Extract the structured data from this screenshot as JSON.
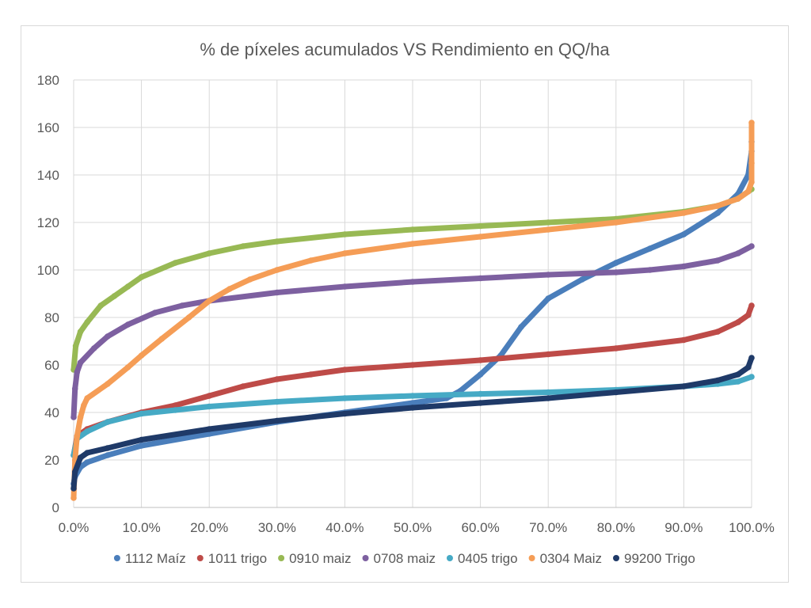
{
  "chart_data": {
    "type": "scatter",
    "title": "% de píxeles acumulados VS Rendimiento en QQ/ha",
    "xlabel": "",
    "ylabel": "",
    "xlim": [
      0,
      1
    ],
    "ylim": [
      0,
      180
    ],
    "x_ticks": [
      "0.0%",
      "10.0%",
      "20.0%",
      "30.0%",
      "40.0%",
      "50.0%",
      "60.0%",
      "70.0%",
      "80.0%",
      "90.0%",
      "100.0%"
    ],
    "y_ticks": [
      "0",
      "20",
      "40",
      "60",
      "80",
      "100",
      "120",
      "140",
      "160",
      "180"
    ],
    "grid": true,
    "legend_position": "bottom",
    "series": [
      {
        "name": "1112 Maíz",
        "color": "#4a7ebb",
        "points": [
          [
            0,
            10
          ],
          [
            0.002,
            13
          ],
          [
            0.01,
            17
          ],
          [
            0.02,
            19
          ],
          [
            0.05,
            22
          ],
          [
            0.1,
            26
          ],
          [
            0.2,
            31
          ],
          [
            0.3,
            36
          ],
          [
            0.4,
            40
          ],
          [
            0.5,
            44
          ],
          [
            0.55,
            46
          ],
          [
            0.57,
            49
          ],
          [
            0.6,
            56
          ],
          [
            0.63,
            64
          ],
          [
            0.66,
            76
          ],
          [
            0.7,
            88
          ],
          [
            0.75,
            96
          ],
          [
            0.8,
            103
          ],
          [
            0.85,
            109
          ],
          [
            0.9,
            115
          ],
          [
            0.95,
            124
          ],
          [
            0.98,
            132
          ],
          [
            0.995,
            140
          ],
          [
            1.0,
            150
          ],
          [
            1.0,
            154
          ]
        ]
      },
      {
        "name": "1011 trigo",
        "color": "#be4b48",
        "points": [
          [
            0,
            22
          ],
          [
            0.005,
            30
          ],
          [
            0.02,
            33
          ],
          [
            0.05,
            36
          ],
          [
            0.1,
            40
          ],
          [
            0.15,
            43
          ],
          [
            0.2,
            47
          ],
          [
            0.25,
            51
          ],
          [
            0.3,
            54
          ],
          [
            0.35,
            56
          ],
          [
            0.4,
            58
          ],
          [
            0.5,
            60
          ],
          [
            0.6,
            62
          ],
          [
            0.7,
            64.5
          ],
          [
            0.8,
            67
          ],
          [
            0.9,
            70.5
          ],
          [
            0.95,
            74
          ],
          [
            0.98,
            78
          ],
          [
            0.995,
            81
          ],
          [
            1.0,
            85
          ]
        ]
      },
      {
        "name": "0910 maiz",
        "color": "#98b954",
        "points": [
          [
            0,
            58
          ],
          [
            0.003,
            68
          ],
          [
            0.01,
            74
          ],
          [
            0.02,
            78
          ],
          [
            0.04,
            85
          ],
          [
            0.06,
            89
          ],
          [
            0.08,
            93
          ],
          [
            0.1,
            97
          ],
          [
            0.15,
            103
          ],
          [
            0.2,
            107
          ],
          [
            0.25,
            110
          ],
          [
            0.3,
            112
          ],
          [
            0.4,
            115
          ],
          [
            0.5,
            117
          ],
          [
            0.6,
            118.5
          ],
          [
            0.7,
            120
          ],
          [
            0.8,
            121.5
          ],
          [
            0.9,
            124.5
          ],
          [
            0.95,
            127
          ],
          [
            0.98,
            130
          ],
          [
            1.0,
            134
          ]
        ]
      },
      {
        "name": "0708 maiz",
        "color": "#7d60a0",
        "points": [
          [
            0,
            38
          ],
          [
            0.002,
            50
          ],
          [
            0.005,
            57
          ],
          [
            0.01,
            61
          ],
          [
            0.03,
            67
          ],
          [
            0.05,
            72
          ],
          [
            0.08,
            77
          ],
          [
            0.12,
            82
          ],
          [
            0.16,
            85
          ],
          [
            0.2,
            87
          ],
          [
            0.3,
            90.5
          ],
          [
            0.4,
            93
          ],
          [
            0.5,
            95
          ],
          [
            0.6,
            96.5
          ],
          [
            0.7,
            98
          ],
          [
            0.8,
            99
          ],
          [
            0.85,
            100
          ],
          [
            0.9,
            101.5
          ],
          [
            0.95,
            104
          ],
          [
            0.98,
            107
          ],
          [
            1.0,
            110
          ]
        ]
      },
      {
        "name": "0405 trigo",
        "color": "#46aac5",
        "points": [
          [
            0,
            22
          ],
          [
            0.005,
            29
          ],
          [
            0.02,
            32
          ],
          [
            0.05,
            36
          ],
          [
            0.1,
            39.5
          ],
          [
            0.15,
            41
          ],
          [
            0.2,
            42.5
          ],
          [
            0.3,
            44.5
          ],
          [
            0.4,
            46
          ],
          [
            0.5,
            47
          ],
          [
            0.6,
            47.8
          ],
          [
            0.7,
            48.5
          ],
          [
            0.8,
            49.5
          ],
          [
            0.9,
            51
          ],
          [
            0.95,
            52
          ],
          [
            0.98,
            53
          ],
          [
            1.0,
            55
          ]
        ]
      },
      {
        "name": "0304 Maiz",
        "color": "#f59d56",
        "points": [
          [
            0,
            4
          ],
          [
            0.002,
            20
          ],
          [
            0.005,
            30
          ],
          [
            0.01,
            38
          ],
          [
            0.015,
            43
          ],
          [
            0.02,
            46
          ],
          [
            0.05,
            52
          ],
          [
            0.08,
            59
          ],
          [
            0.1,
            64
          ],
          [
            0.13,
            71
          ],
          [
            0.17,
            80
          ],
          [
            0.2,
            87
          ],
          [
            0.23,
            92
          ],
          [
            0.26,
            96
          ],
          [
            0.3,
            100
          ],
          [
            0.35,
            104
          ],
          [
            0.4,
            107
          ],
          [
            0.5,
            111
          ],
          [
            0.6,
            114
          ],
          [
            0.7,
            117
          ],
          [
            0.8,
            120
          ],
          [
            0.9,
            124
          ],
          [
            0.95,
            127
          ],
          [
            0.98,
            130
          ],
          [
            0.995,
            133
          ],
          [
            1.0,
            137
          ],
          [
            1.0,
            145
          ],
          [
            1.0,
            162
          ]
        ]
      },
      {
        "name": "99200 Trigo",
        "color": "#1f3a68",
        "points": [
          [
            0,
            8
          ],
          [
            0.002,
            15
          ],
          [
            0.01,
            21
          ],
          [
            0.02,
            23
          ],
          [
            0.05,
            25
          ],
          [
            0.1,
            28.5
          ],
          [
            0.2,
            33
          ],
          [
            0.3,
            36.5
          ],
          [
            0.4,
            39.5
          ],
          [
            0.5,
            42
          ],
          [
            0.6,
            44
          ],
          [
            0.7,
            46
          ],
          [
            0.8,
            48.5
          ],
          [
            0.9,
            51
          ],
          [
            0.95,
            53.5
          ],
          [
            0.98,
            56
          ],
          [
            0.995,
            59
          ],
          [
            1.0,
            63
          ]
        ]
      }
    ]
  }
}
